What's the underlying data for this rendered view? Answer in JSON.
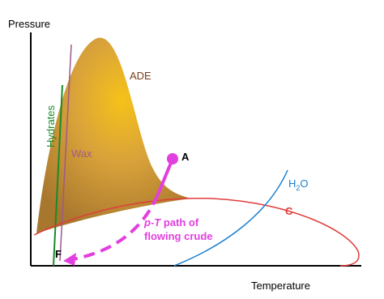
{
  "axes": {
    "y_label": "Pressure",
    "x_label": "Temperature"
  },
  "regions": {
    "ade": "ADE",
    "hydrates": "Hydrates",
    "wax": "Wax",
    "c_label": "C",
    "h2o": [
      "H",
      "2",
      "O"
    ]
  },
  "points": {
    "a": "A",
    "f": "F"
  },
  "path_label": [
    [
      "p-T",
      " path of"
    ],
    "flowing crude"
  ]
}
